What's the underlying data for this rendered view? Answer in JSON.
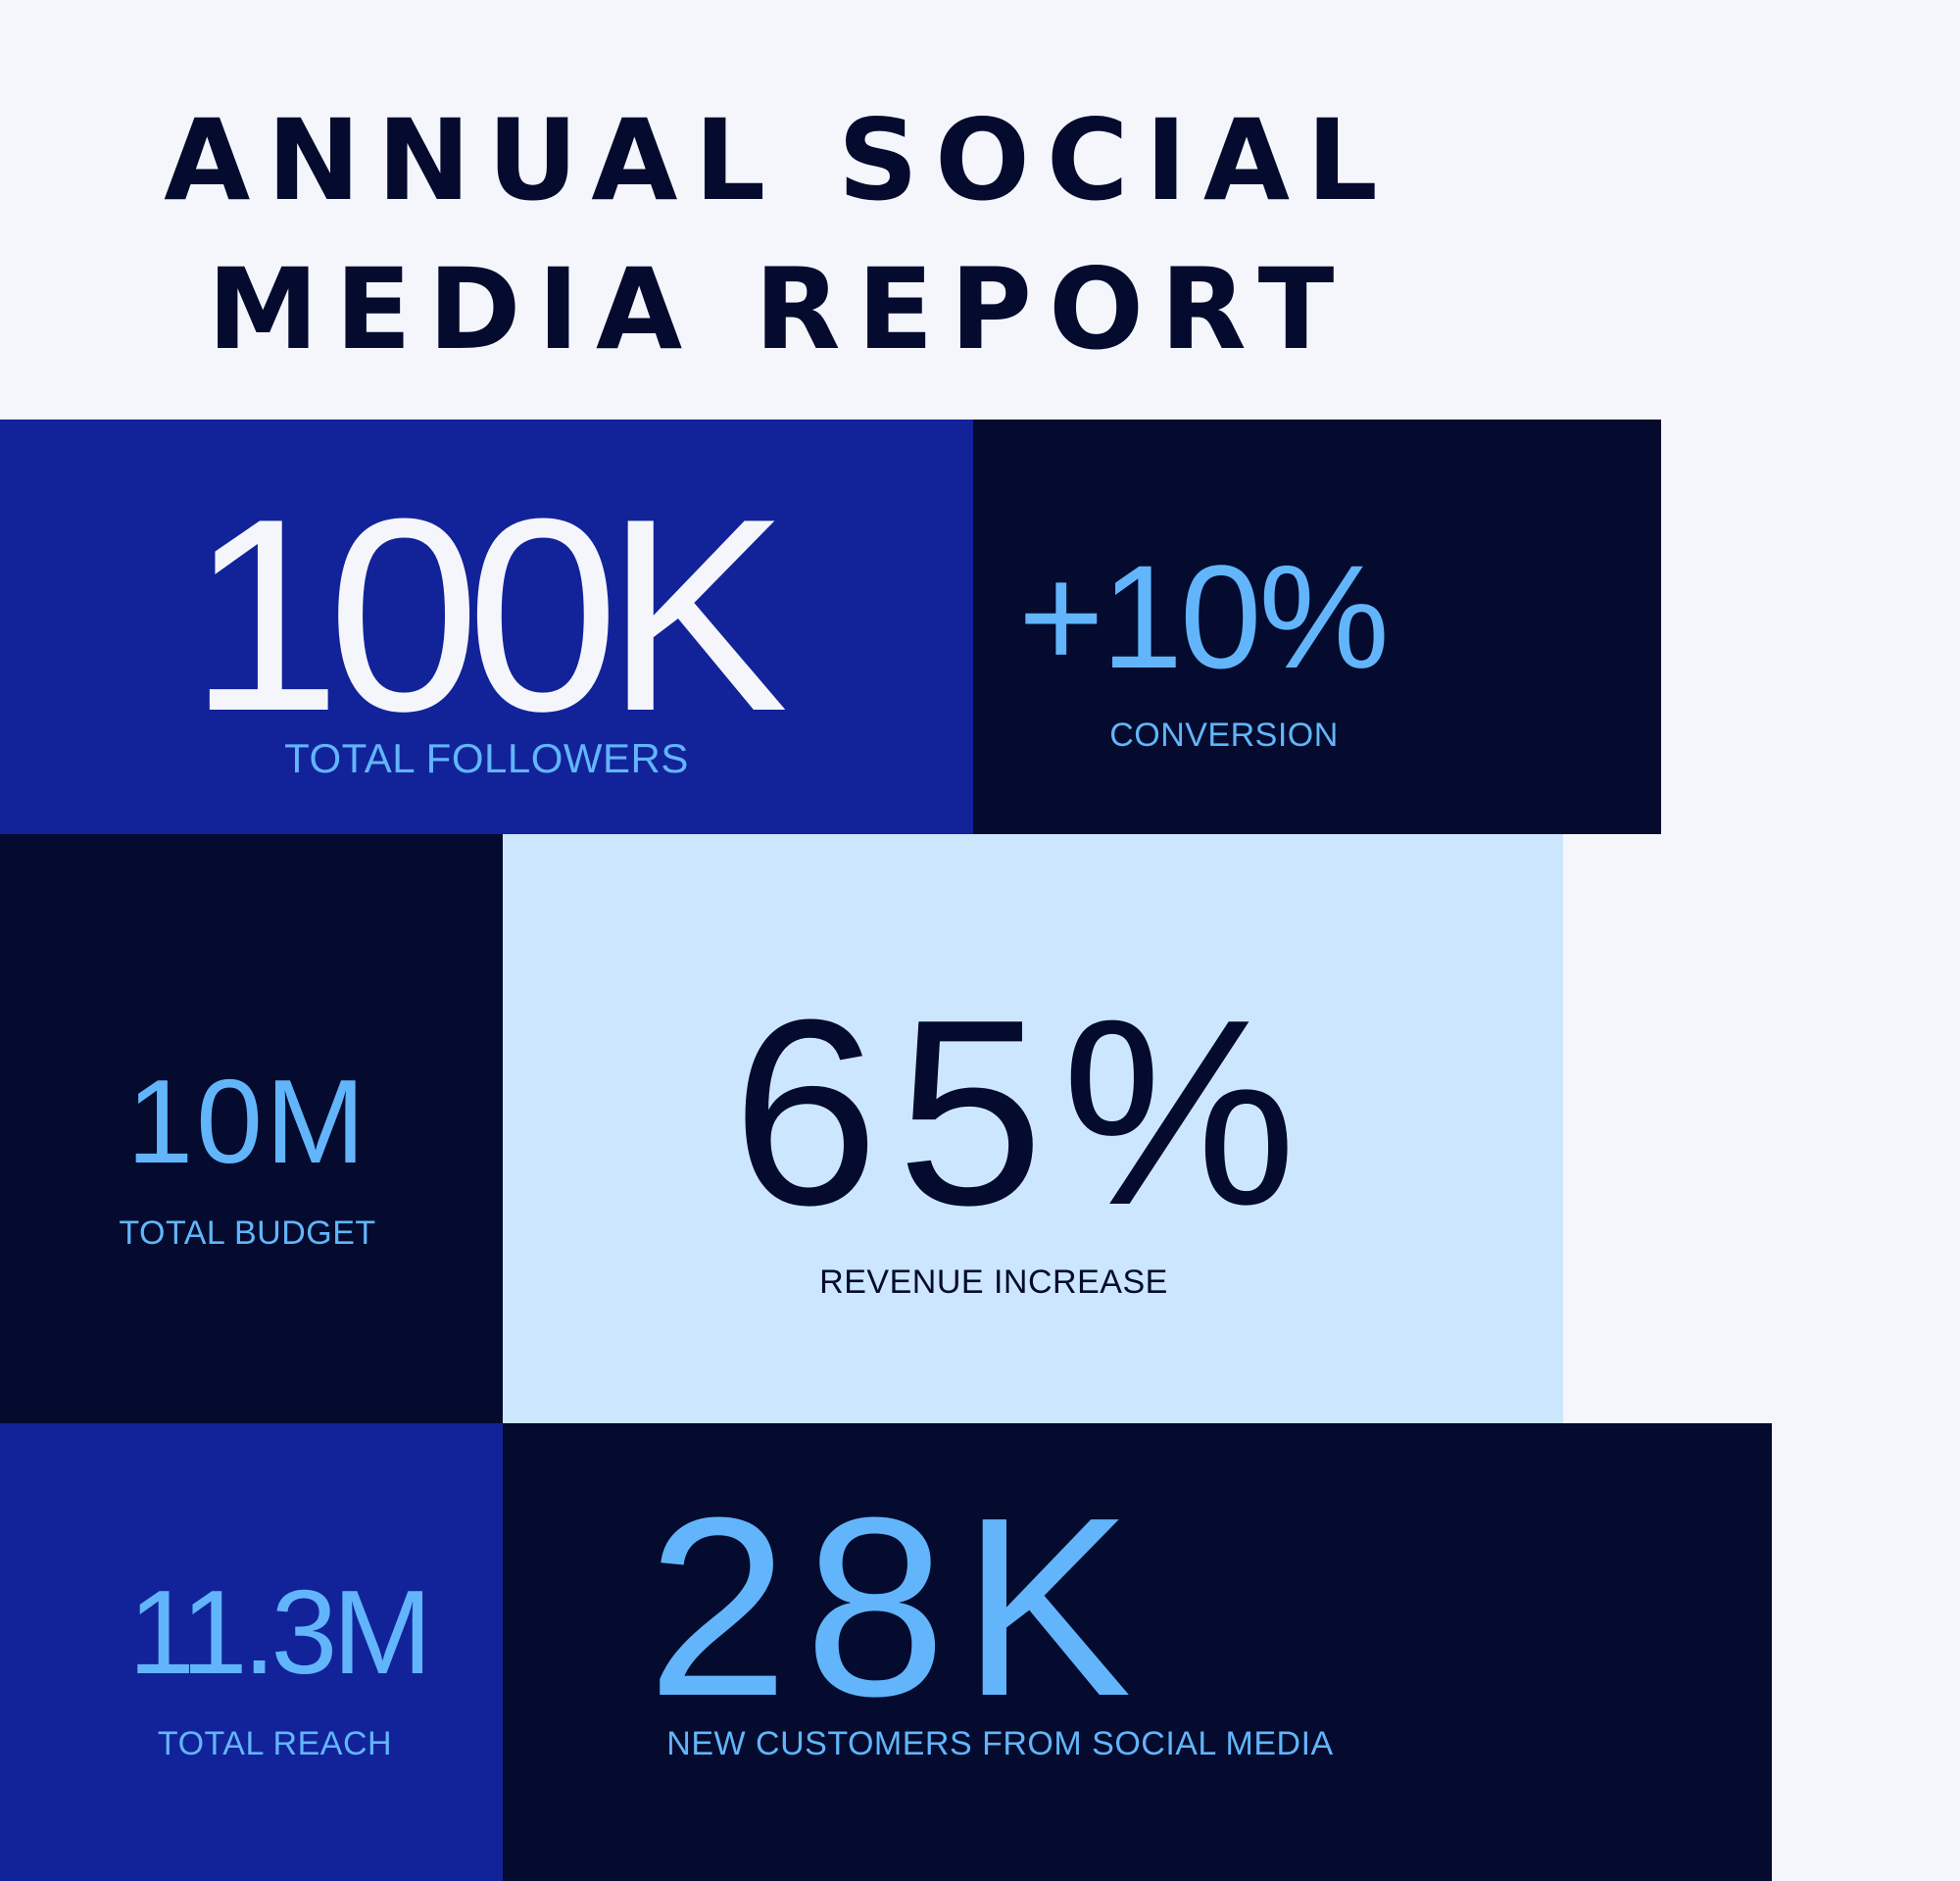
{
  "title": {
    "line1": "ANNUAL SOCIAL",
    "line2": "MEDIA REPORT"
  },
  "colors": {
    "background": "#F4F6FB",
    "royal_blue": "#12239A",
    "navy": "#040B2E",
    "light_blue": "#CCE7FD",
    "accent": "#62B5FA",
    "white_text": "#F4F6FB"
  },
  "stats": {
    "followers": {
      "value": "100K",
      "label": "TOTAL FOLLOWERS"
    },
    "conversion": {
      "value": "+10%",
      "label": "CONVERSION"
    },
    "budget": {
      "value": "10M",
      "label": "TOTAL BUDGET"
    },
    "revenue": {
      "value": "65%",
      "label": "REVENUE INCREASE"
    },
    "reach": {
      "value": "11.3M",
      "label": "TOTAL REACH"
    },
    "customers": {
      "value": "28K",
      "label": "NEW CUSTOMERS FROM SOCIAL MEDIA"
    }
  }
}
